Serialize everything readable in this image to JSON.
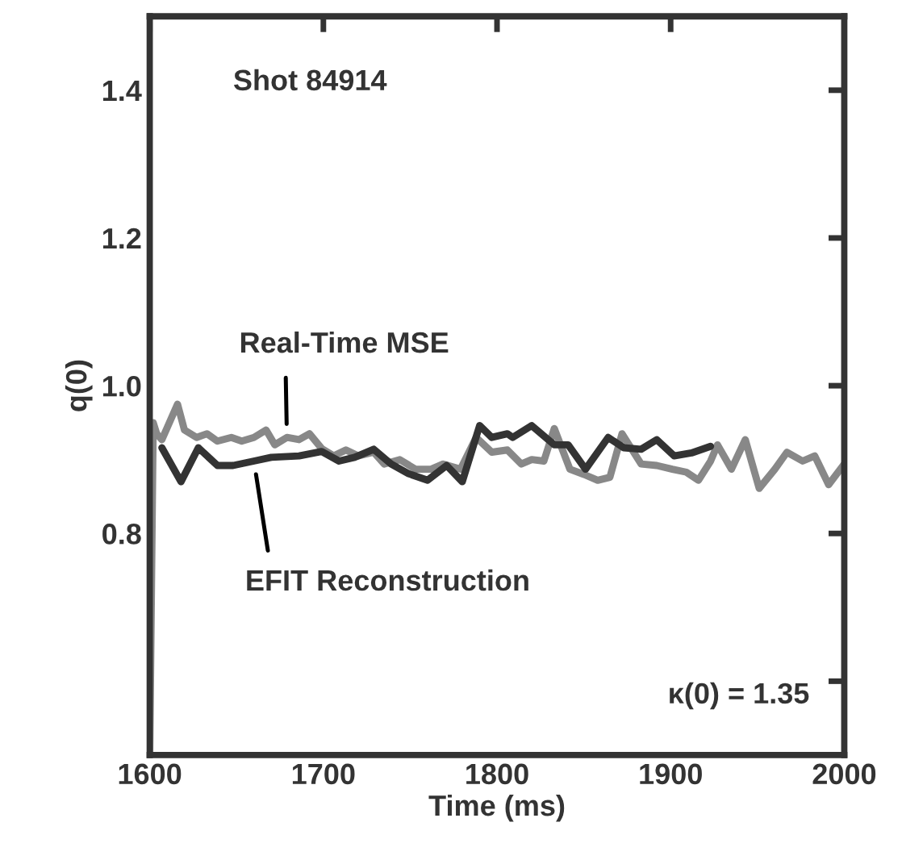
{
  "chart_data": {
    "type": "line",
    "xlabel": "Time (ms)",
    "ylabel": "q(0)",
    "xlim": [
      1600,
      2000
    ],
    "xticks": [
      1600,
      1700,
      1800,
      1900,
      2000
    ],
    "ylim": [
      0.5,
      1.5
    ],
    "yticks": [
      {
        "value": 0.6,
        "label": null
      },
      0.8,
      {
        "value": 1.0,
        "label": "1.0"
      },
      1.2,
      1.4
    ],
    "grid": false,
    "legend": false,
    "marker": "none",
    "line_style": "solid",
    "series": [
      {
        "color": "#888888",
        "x": [
          1600,
          1602,
          1604,
          1607,
          1616,
          1620,
          1627,
          1633,
          1639,
          1647,
          1653,
          1660,
          1667,
          1672,
          1679,
          1686,
          1692,
          1699,
          1706,
          1713,
          1720,
          1729,
          1735,
          1744,
          1753,
          1762,
          1769,
          1779,
          1788,
          1797,
          1806,
          1814,
          1820,
          1827,
          1833,
          1842,
          1850,
          1858,
          1865,
          1872,
          1883,
          1892,
          1901,
          1909,
          1916,
          1923,
          1927,
          1935,
          1943,
          1951,
          1960,
          1967,
          1976,
          1983,
          1991,
          2000
        ],
        "values": [
          0.5,
          0.95,
          0.935,
          0.927,
          0.975,
          0.94,
          0.93,
          0.935,
          0.925,
          0.93,
          0.925,
          0.93,
          0.94,
          0.92,
          0.93,
          0.927,
          0.935,
          0.915,
          0.905,
          0.913,
          0.905,
          0.91,
          0.894,
          0.9,
          0.887,
          0.887,
          0.894,
          0.887,
          0.93,
          0.91,
          0.913,
          0.894,
          0.9,
          0.898,
          0.942,
          0.887,
          0.88,
          0.872,
          0.876,
          0.935,
          0.894,
          0.892,
          0.887,
          0.883,
          0.872,
          0.898,
          0.92,
          0.887,
          0.927,
          0.861,
          0.887,
          0.91,
          0.898,
          0.905,
          0.866,
          0.894
        ]
      },
      {
        "color": "#333333",
        "x": [
          1607,
          1618,
          1628,
          1639,
          1648,
          1660,
          1670,
          1686,
          1699,
          1709,
          1718,
          1729,
          1739,
          1749,
          1760,
          1771,
          1780,
          1790,
          1797,
          1806,
          1809,
          1820,
          1833,
          1841,
          1851,
          1864,
          1873,
          1883,
          1892,
          1902,
          1912,
          1923
        ],
        "values": [
          0.916,
          0.87,
          0.916,
          0.892,
          0.892,
          0.898,
          0.903,
          0.905,
          0.911,
          0.898,
          0.903,
          0.914,
          0.894,
          0.881,
          0.872,
          0.892,
          0.87,
          0.946,
          0.93,
          0.935,
          0.93,
          0.946,
          0.92,
          0.92,
          0.887,
          0.93,
          0.916,
          0.914,
          0.927,
          0.905,
          0.909,
          0.918
        ]
      }
    ],
    "annotations": [
      {
        "text": "Shot 84914"
      },
      {
        "text": "Real-Time MSE",
        "x": 1679,
        "y": 0.93
      },
      {
        "text": "EFIT Reconstruction",
        "x": 1660,
        "y": 0.898
      },
      {
        "text": "κ(0) = 1.35"
      }
    ]
  }
}
